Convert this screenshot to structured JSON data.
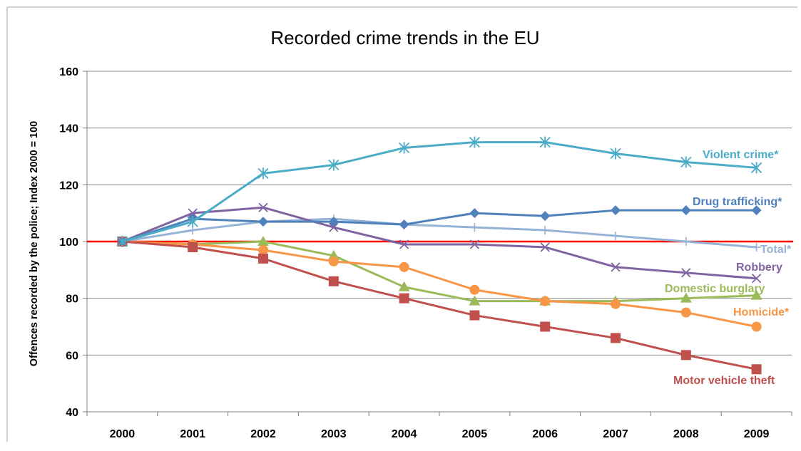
{
  "chart_data": {
    "type": "line",
    "title": "Recorded crime trends in the EU",
    "xlabel": "",
    "ylabel": "Offences recorded by the police; Index 2000 = 100",
    "ylim": [
      40,
      160
    ],
    "yticks": [
      "40",
      "60",
      "80",
      "100",
      "120",
      "140",
      "160"
    ],
    "categories": [
      "2000",
      "2001",
      "2002",
      "2003",
      "2004",
      "2005",
      "2006",
      "2007",
      "2008",
      "2009"
    ],
    "grid": true,
    "reference_line": {
      "value": 100,
      "color": "#ff0000"
    },
    "series": [
      {
        "name": "Violent crime*",
        "color": "#4aacc6",
        "marker": "asterisk",
        "values": [
          100,
          107,
          124,
          127,
          133,
          135,
          135,
          131,
          128,
          126
        ]
      },
      {
        "name": "Drug trafficking*",
        "color": "#4f81bd",
        "marker": "diamond",
        "values": [
          100,
          108,
          107,
          107,
          106,
          110,
          109,
          111,
          111,
          111
        ]
      },
      {
        "name": "Total*",
        "color": "#95b3d7",
        "marker": "plus",
        "values": [
          100,
          104,
          107,
          108,
          106,
          105,
          104,
          102,
          100,
          98
        ]
      },
      {
        "name": "Robbery",
        "color": "#8064a2",
        "marker": "x",
        "values": [
          100,
          110,
          112,
          105,
          99,
          99,
          98,
          91,
          89,
          87
        ]
      },
      {
        "name": "Domestic burglary",
        "color": "#9bbb59",
        "marker": "triangle",
        "values": [
          100,
          99,
          100,
          95,
          84,
          79,
          79,
          79,
          80,
          81
        ]
      },
      {
        "name": "Homicide*",
        "color": "#f79646",
        "marker": "circle",
        "values": [
          100,
          99,
          97,
          93,
          91,
          83,
          79,
          78,
          75,
          70
        ]
      },
      {
        "name": "Motor vehicle theft",
        "color": "#c0504d",
        "marker": "square",
        "values": [
          100,
          98,
          94,
          86,
          80,
          74,
          70,
          66,
          60,
          55
        ]
      }
    ]
  }
}
